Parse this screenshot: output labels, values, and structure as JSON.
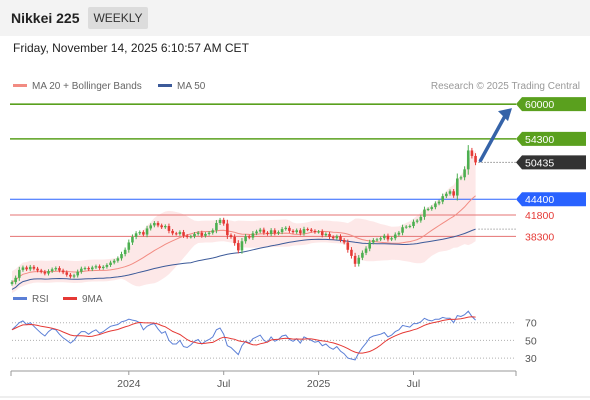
{
  "header": {
    "title": "Nikkei 225",
    "period": "WEEKLY",
    "datetime": "Friday, November 14, 2025 6:10:57 AM CET",
    "credit": "Research © 2025 Trading Central"
  },
  "colors": {
    "bull_candle": "#4caf50",
    "bear_candle": "#e53935",
    "ma20": "#f28b82",
    "bollinger_fill": "#fde2e2",
    "ma50": "#3c5a99",
    "resistance": "#5aa01e",
    "pivot": "#2962ff",
    "support": "#e57373",
    "arrow": "#3563a8",
    "rsi": "#5b7fd6",
    "rsi_ma": "#e53935"
  },
  "chart_data": [
    {
      "type": "candlestick",
      "title": "Nikkei 225",
      "x_ticks": [
        "2024",
        "Jul",
        "2025",
        "Jul"
      ],
      "legend": [
        "MA 20 + Bollinger Bands",
        "MA 50"
      ],
      "price_range": [
        29500,
        61500
      ],
      "current_price": 50435,
      "ohlc_close": [
        30800,
        31500,
        32800,
        33200,
        32900,
        33300,
        33000,
        32700,
        32500,
        32200,
        32600,
        32900,
        33100,
        32700,
        32400,
        32000,
        31700,
        31900,
        32500,
        33000,
        33100,
        32900,
        33200,
        33400,
        33100,
        33300,
        33600,
        34000,
        34300,
        34700,
        35400,
        36100,
        37300,
        38200,
        38800,
        39000,
        38600,
        39600,
        40100,
        40500,
        40100,
        39800,
        40000,
        39200,
        38800,
        38700,
        39000,
        38400,
        38200,
        38300,
        38700,
        38900,
        38400,
        38700,
        38900,
        39300,
        40500,
        41000,
        40400,
        38500,
        38200,
        37200,
        36000,
        37500,
        38300,
        38100,
        38800,
        39100,
        39400,
        38900,
        38700,
        39300,
        38800,
        39000,
        39500,
        39700,
        39200,
        39000,
        39300,
        38800,
        39500,
        39400,
        39200,
        39000,
        39100,
        38500,
        38700,
        38200,
        38000,
        38300,
        37700,
        37300,
        36100,
        35100,
        33800,
        34800,
        35600,
        36300,
        37300,
        37700,
        37800,
        38000,
        38400,
        37800,
        38000,
        38600,
        38900,
        39800,
        39900,
        40000,
        40700,
        40900,
        41500,
        42700,
        42800,
        43100,
        43700,
        44000,
        44900,
        45300,
        45700,
        45000,
        47800,
        48000,
        49300,
        52400,
        51500,
        50435
      ],
      "levels": [
        {
          "label": "60000",
          "value": 60000,
          "kind": "resistance"
        },
        {
          "label": "54300",
          "value": 54300,
          "kind": "resistance"
        },
        {
          "label": "50435",
          "value": 50435,
          "kind": "last"
        },
        {
          "label": "44400",
          "value": 44400,
          "kind": "pivot"
        },
        {
          "label": "41800",
          "value": 41800,
          "kind": "support"
        },
        {
          "label": "38300",
          "value": 38300,
          "kind": "support"
        }
      ],
      "arrow": {
        "from": 50435,
        "to": 60000
      }
    },
    {
      "type": "line",
      "legend": [
        "RSI",
        "9MA"
      ],
      "y_ticks": [
        "70",
        "50",
        "30"
      ],
      "yrange": [
        20,
        90
      ],
      "rsi": [
        62,
        66,
        70,
        72,
        68,
        70,
        66,
        62,
        58,
        55,
        60,
        63,
        62,
        57,
        53,
        50,
        47,
        50,
        56,
        60,
        60,
        57,
        60,
        62,
        58,
        60,
        63,
        66,
        67,
        68,
        71,
        72,
        74,
        73,
        72,
        70,
        62,
        66,
        68,
        69,
        63,
        58,
        60,
        50,
        46,
        46,
        50,
        43,
        42,
        45,
        49,
        51,
        46,
        49,
        51,
        54,
        62,
        64,
        57,
        44,
        42,
        38,
        34,
        44,
        49,
        47,
        52,
        54,
        56,
        50,
        48,
        54,
        49,
        51,
        55,
        56,
        51,
        49,
        52,
        47,
        54,
        52,
        50,
        48,
        49,
        44,
        46,
        42,
        40,
        43,
        38,
        35,
        30,
        29,
        28,
        36,
        42,
        47,
        53,
        55,
        56,
        57,
        59,
        54,
        56,
        60,
        62,
        67,
        66,
        65,
        69,
        69,
        71,
        75,
        73,
        72,
        74,
        74,
        76,
        75,
        75,
        70,
        78,
        77,
        79,
        83,
        77,
        73
      ]
    }
  ],
  "rsi_panel": {
    "rsi_label": "RSI",
    "ma_label": "9MA"
  }
}
